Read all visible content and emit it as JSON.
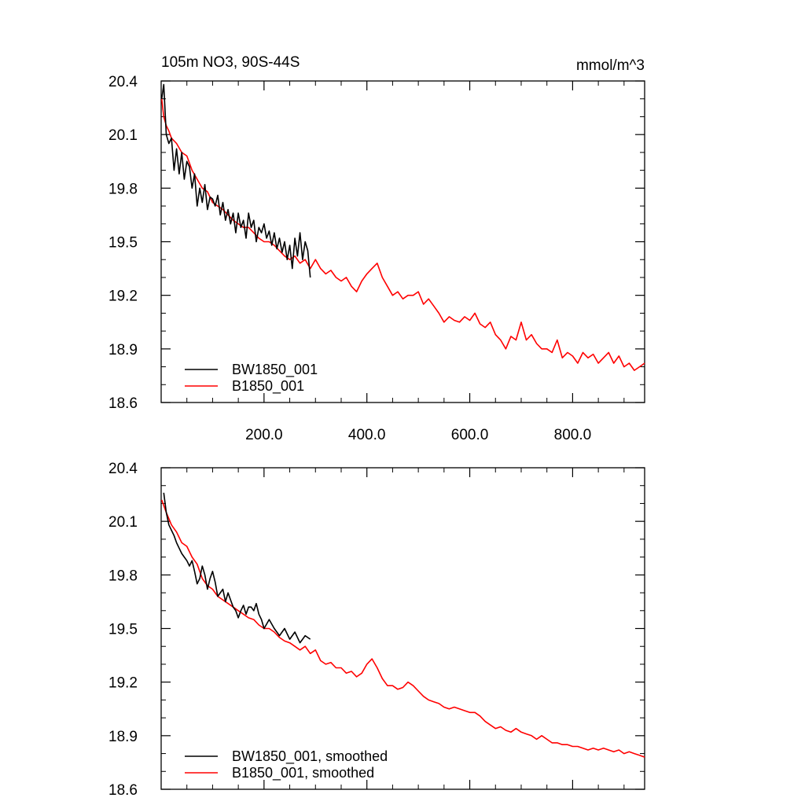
{
  "chart_data": [
    {
      "type": "line",
      "title": "105m NO3, 90S-44S",
      "units": "mmol/m^3",
      "xlim": [
        0,
        940
      ],
      "ylim": [
        18.6,
        20.4
      ],
      "xticks": [
        200,
        400,
        600,
        800
      ],
      "xtick_labels": [
        "200.0",
        "400.0",
        "600.0",
        "800.0"
      ],
      "yticks": [
        18.6,
        18.9,
        19.2,
        19.5,
        19.8,
        20.1,
        20.4
      ],
      "ytick_labels": [
        "18.6",
        "18.9",
        "19.2",
        "19.5",
        "19.8",
        "20.1",
        "20.4"
      ],
      "legend_position": "bottom-left",
      "series": [
        {
          "name": "BW1850_001",
          "color": "#000000",
          "x": [
            1,
            5,
            10,
            15,
            20,
            25,
            30,
            35,
            40,
            45,
            50,
            55,
            60,
            65,
            70,
            75,
            80,
            85,
            90,
            95,
            100,
            105,
            110,
            115,
            120,
            125,
            130,
            135,
            140,
            145,
            150,
            155,
            160,
            165,
            170,
            175,
            180,
            185,
            190,
            195,
            200,
            205,
            210,
            215,
            220,
            225,
            230,
            235,
            240,
            245,
            250,
            255,
            260,
            265,
            270,
            275,
            280,
            285,
            290
          ],
          "y": [
            20.3,
            20.38,
            20.1,
            20.05,
            20.08,
            19.9,
            20.02,
            19.88,
            20.0,
            19.85,
            19.95,
            19.92,
            19.8,
            19.88,
            19.7,
            19.8,
            19.72,
            19.82,
            19.68,
            19.75,
            19.74,
            19.7,
            19.76,
            19.65,
            19.72,
            19.62,
            19.68,
            19.6,
            19.66,
            19.55,
            19.66,
            19.58,
            19.62,
            19.52,
            19.66,
            19.58,
            19.62,
            19.5,
            19.58,
            19.55,
            19.6,
            19.52,
            19.56,
            19.48,
            19.55,
            19.46,
            19.52,
            19.44,
            19.5,
            19.4,
            19.48,
            19.35,
            19.52,
            19.42,
            19.55,
            19.4,
            19.5,
            19.45,
            19.3
          ]
        },
        {
          "name": "B1850_001",
          "color": "#ff0000",
          "x": [
            1,
            5,
            10,
            15,
            20,
            30,
            40,
            50,
            60,
            70,
            80,
            90,
            100,
            110,
            120,
            130,
            140,
            150,
            160,
            170,
            180,
            190,
            200,
            210,
            220,
            230,
            240,
            250,
            260,
            270,
            280,
            290,
            300,
            310,
            320,
            330,
            340,
            350,
            360,
            370,
            380,
            390,
            400,
            410,
            420,
            430,
            440,
            450,
            460,
            470,
            480,
            490,
            500,
            510,
            520,
            530,
            540,
            550,
            560,
            570,
            580,
            590,
            600,
            610,
            620,
            630,
            640,
            650,
            660,
            670,
            680,
            690,
            700,
            710,
            720,
            730,
            740,
            750,
            760,
            770,
            780,
            790,
            800,
            810,
            820,
            830,
            840,
            850,
            860,
            870,
            880,
            890,
            900,
            910,
            920,
            930,
            940
          ],
          "y": [
            20.3,
            20.2,
            20.15,
            20.12,
            20.08,
            20.05,
            20.0,
            19.98,
            19.9,
            19.85,
            19.8,
            19.78,
            19.72,
            19.7,
            19.68,
            19.65,
            19.62,
            19.6,
            19.58,
            19.58,
            19.55,
            19.52,
            19.5,
            19.5,
            19.48,
            19.45,
            19.42,
            19.4,
            19.42,
            19.38,
            19.4,
            19.35,
            19.4,
            19.35,
            19.32,
            19.34,
            19.3,
            19.28,
            19.3,
            19.25,
            19.22,
            19.28,
            19.32,
            19.35,
            19.38,
            19.3,
            19.25,
            19.2,
            19.22,
            19.18,
            19.2,
            19.2,
            19.22,
            19.15,
            19.18,
            19.14,
            19.1,
            19.05,
            19.08,
            19.06,
            19.05,
            19.08,
            19.06,
            19.1,
            19.04,
            19.02,
            19.05,
            18.98,
            18.95,
            18.9,
            18.97,
            18.95,
            19.05,
            18.95,
            18.98,
            18.93,
            18.9,
            18.9,
            18.88,
            18.95,
            18.85,
            18.88,
            18.86,
            18.82,
            18.88,
            18.85,
            18.87,
            18.82,
            18.85,
            18.88,
            18.82,
            18.86,
            18.8,
            18.82,
            18.78,
            18.8,
            18.82
          ]
        }
      ]
    },
    {
      "type": "line",
      "xlim": [
        0,
        940
      ],
      "ylim": [
        18.6,
        20.4
      ],
      "xticks": [
        200,
        400,
        600,
        800
      ],
      "yticks": [
        18.6,
        18.9,
        19.2,
        19.5,
        19.8,
        20.1,
        20.4
      ],
      "ytick_labels": [
        "18.6",
        "18.9",
        "19.2",
        "19.5",
        "19.8",
        "20.1",
        "20.4"
      ],
      "legend_position": "bottom-left",
      "series": [
        {
          "name": "BW1850_001, smoothed",
          "color": "#000000",
          "x": [
            5,
            10,
            15,
            20,
            25,
            30,
            35,
            40,
            45,
            50,
            55,
            60,
            65,
            70,
            75,
            80,
            85,
            90,
            95,
            100,
            105,
            110,
            115,
            120,
            125,
            130,
            135,
            140,
            145,
            150,
            155,
            160,
            165,
            170,
            175,
            180,
            185,
            190,
            195,
            200,
            210,
            220,
            230,
            240,
            250,
            260,
            270,
            280,
            290
          ],
          "y": [
            20.26,
            20.15,
            20.08,
            20.05,
            20.02,
            19.98,
            19.95,
            19.92,
            19.9,
            19.88,
            19.85,
            19.88,
            19.82,
            19.75,
            19.78,
            19.85,
            19.8,
            19.72,
            19.78,
            19.82,
            19.76,
            19.68,
            19.7,
            19.72,
            19.65,
            19.7,
            19.66,
            19.62,
            19.6,
            19.56,
            19.6,
            19.63,
            19.58,
            19.62,
            19.62,
            19.6,
            19.64,
            19.58,
            19.55,
            19.5,
            19.55,
            19.5,
            19.46,
            19.5,
            19.44,
            19.48,
            19.42,
            19.46,
            19.44
          ]
        },
        {
          "name": "B1850_001, smoothed",
          "color": "#ff0000",
          "x": [
            1,
            10,
            20,
            30,
            40,
            50,
            60,
            70,
            80,
            90,
            100,
            110,
            120,
            130,
            140,
            150,
            160,
            170,
            180,
            190,
            200,
            210,
            220,
            230,
            240,
            250,
            260,
            270,
            280,
            290,
            300,
            310,
            320,
            330,
            340,
            350,
            360,
            370,
            380,
            390,
            400,
            410,
            420,
            430,
            440,
            450,
            460,
            470,
            480,
            490,
            500,
            510,
            520,
            530,
            540,
            550,
            560,
            570,
            580,
            590,
            600,
            610,
            620,
            630,
            640,
            650,
            660,
            670,
            680,
            690,
            700,
            710,
            720,
            730,
            740,
            750,
            760,
            770,
            780,
            790,
            800,
            810,
            820,
            830,
            840,
            850,
            860,
            870,
            880,
            890,
            900,
            910,
            920,
            930,
            940
          ],
          "y": [
            20.22,
            20.15,
            20.08,
            20.04,
            19.98,
            19.96,
            19.9,
            19.86,
            19.78,
            19.74,
            19.72,
            19.68,
            19.66,
            19.64,
            19.62,
            19.6,
            19.58,
            19.56,
            19.55,
            19.52,
            19.5,
            19.5,
            19.48,
            19.45,
            19.43,
            19.42,
            19.4,
            19.38,
            19.4,
            19.36,
            19.38,
            19.32,
            19.3,
            19.31,
            19.28,
            19.28,
            19.25,
            19.26,
            19.23,
            19.25,
            19.3,
            19.33,
            19.28,
            19.22,
            19.18,
            19.18,
            19.16,
            19.17,
            19.2,
            19.18,
            19.15,
            19.12,
            19.1,
            19.09,
            19.08,
            19.06,
            19.05,
            19.06,
            19.05,
            19.04,
            19.03,
            19.03,
            19.01,
            18.98,
            18.96,
            18.94,
            18.95,
            18.93,
            18.92,
            18.94,
            18.92,
            18.91,
            18.9,
            18.88,
            18.9,
            18.88,
            18.86,
            18.86,
            18.85,
            18.85,
            18.84,
            18.84,
            18.83,
            18.82,
            18.83,
            18.82,
            18.83,
            18.82,
            18.81,
            18.82,
            18.8,
            18.81,
            18.8,
            18.79,
            18.78
          ]
        }
      ]
    }
  ]
}
